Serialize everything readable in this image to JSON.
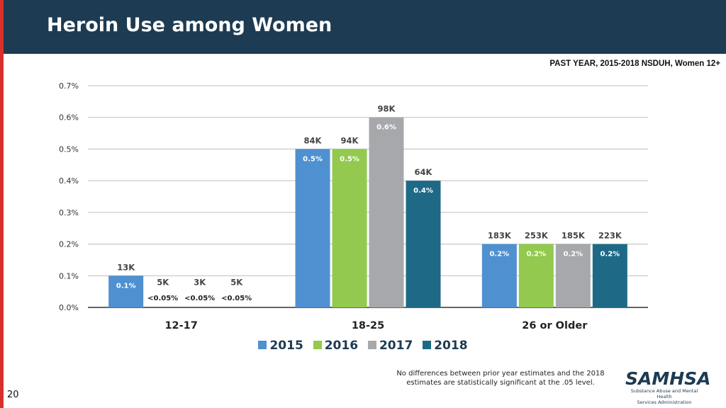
{
  "header": {
    "title": "Heroin Use among Women"
  },
  "page_number": "20",
  "footnote": {
    "line1": "No differences between prior year estimates and the 2018",
    "line2": "estimates are statistically significant at the .05 level."
  },
  "logo": {
    "word": "SAMHSA",
    "tagline1": "Substance Abuse and Mental Health",
    "tagline2": "Services Administration"
  },
  "colors": {
    "header": "#1d3b52",
    "stripe": "#d9302c"
  },
  "chart_data": {
    "type": "bar",
    "title": "",
    "subtitle": "PAST YEAR, 2015-2018 NSDUH, Women 12+",
    "xlabel": "",
    "ylabel": "",
    "ylim": [
      0,
      0.7
    ],
    "yticks": [
      "0.0%",
      "0.1%",
      "0.2%",
      "0.3%",
      "0.4%",
      "0.5%",
      "0.6%",
      "0.7%"
    ],
    "grid": true,
    "legend_position": "bottom",
    "categories": [
      "12-17",
      "18-25",
      "26 or Older"
    ],
    "series": [
      {
        "name": "2015",
        "color": "#4f90d0",
        "values": [
          0.1,
          0.5,
          0.2
        ],
        "percent_labels": [
          "0.1%",
          "0.5%",
          "0.2%"
        ],
        "count_labels": [
          "13K",
          "84K",
          "183K"
        ]
      },
      {
        "name": "2016",
        "color": "#92c94e",
        "values": [
          0.0,
          0.5,
          0.2
        ],
        "percent_labels": [
          "<0.05%",
          "0.5%",
          "0.2%"
        ],
        "count_labels": [
          "5K",
          "94K",
          "253K"
        ]
      },
      {
        "name": "2017",
        "color": "#a6a8ab",
        "values": [
          0.0,
          0.6,
          0.2
        ],
        "percent_labels": [
          "<0.05%",
          "0.6%",
          "0.2%"
        ],
        "count_labels": [
          "3K",
          "98K",
          "185K"
        ]
      },
      {
        "name": "2018",
        "color": "#1e6a86",
        "values": [
          0.0,
          0.4,
          0.2
        ],
        "percent_labels": [
          "<0.05%",
          "0.4%",
          "0.2%"
        ],
        "count_labels": [
          "5K",
          "64K",
          "223K"
        ]
      }
    ]
  }
}
